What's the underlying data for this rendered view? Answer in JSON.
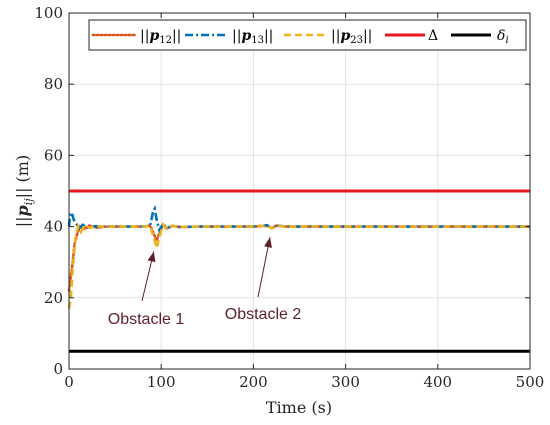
{
  "chart_data": {
    "type": "line",
    "title": "",
    "xlabel": "Time (s)",
    "ylabel": "||p_ij|| (m)",
    "xlim": [
      0,
      500
    ],
    "ylim": [
      0,
      100
    ],
    "xticks": [
      "0",
      "100",
      "200",
      "300",
      "400",
      "500"
    ],
    "yticks": [
      "0",
      "20",
      "40",
      "60",
      "80",
      "100"
    ],
    "grid": true,
    "legend_position": "top",
    "series": [
      {
        "name": "||p12||",
        "color": "#d95319",
        "style": "dotted",
        "x": [
          0,
          2,
          4,
          6,
          9,
          12,
          16,
          22,
          30,
          40,
          60,
          80,
          88,
          92,
          95,
          98,
          102,
          106,
          112,
          120,
          140,
          160,
          180,
          200,
          215,
          220,
          225,
          235,
          260,
          300,
          350,
          400,
          450,
          500
        ],
        "y": [
          22,
          26,
          30,
          35,
          38,
          40,
          39.2,
          40.3,
          39.7,
          40,
          40,
          40,
          40.3,
          38,
          36,
          38.2,
          40.6,
          39.4,
          40.2,
          39.9,
          40,
          40,
          40,
          40,
          40.2,
          39.6,
          40.3,
          40,
          40,
          40,
          40,
          40,
          40,
          40
        ]
      },
      {
        "name": "||p13||",
        "color": "#0072bd",
        "style": "dashdot",
        "x": [
          0,
          1,
          3,
          5,
          8,
          11,
          15,
          20,
          28,
          40,
          60,
          80,
          88,
          91,
          93,
          95,
          98,
          102,
          106,
          112,
          120,
          140,
          160,
          180,
          200,
          215,
          220,
          225,
          235,
          260,
          300,
          350,
          400,
          450,
          500
        ],
        "y": [
          40,
          43,
          44,
          42,
          40.8,
          39.5,
          40.5,
          39.7,
          40.1,
          40,
          40,
          40,
          40.2,
          44,
          45,
          42,
          39,
          40.8,
          39.6,
          40.2,
          39.9,
          40,
          40,
          40,
          40,
          40.4,
          39.5,
          40.3,
          40,
          40,
          40,
          40,
          40,
          40,
          40
        ]
      },
      {
        "name": "||p23||",
        "color": "#edb120",
        "style": "dashed",
        "x": [
          0,
          2,
          4,
          7,
          10,
          13,
          17,
          22,
          28,
          40,
          60,
          80,
          88,
          92,
          95,
          98,
          102,
          106,
          112,
          120,
          140,
          160,
          180,
          200,
          215,
          220,
          225,
          235,
          260,
          300,
          350,
          400,
          450,
          500
        ],
        "y": [
          17,
          20,
          28,
          37,
          40,
          38.5,
          40.4,
          39.6,
          40.1,
          40,
          40,
          40,
          40.2,
          37,
          34,
          37,
          40.6,
          39.3,
          40.2,
          39.9,
          40,
          40,
          40,
          40,
          40.3,
          39.5,
          40.2,
          40,
          40,
          40,
          40,
          40,
          40,
          40
        ]
      },
      {
        "name": "Δ",
        "color": "#e8141e",
        "style": "solid",
        "x": [
          0,
          500
        ],
        "y": [
          50,
          50
        ]
      },
      {
        "name": "δi",
        "color": "#000000",
        "style": "solid",
        "x": [
          0,
          500
        ],
        "y": [
          5,
          5
        ]
      }
    ],
    "annotations": [
      {
        "text": "Obstacle 1",
        "arrow_to": [
          92,
          33
        ]
      },
      {
        "text": "Obstacle 2",
        "arrow_to": [
          218,
          37
        ]
      }
    ]
  }
}
